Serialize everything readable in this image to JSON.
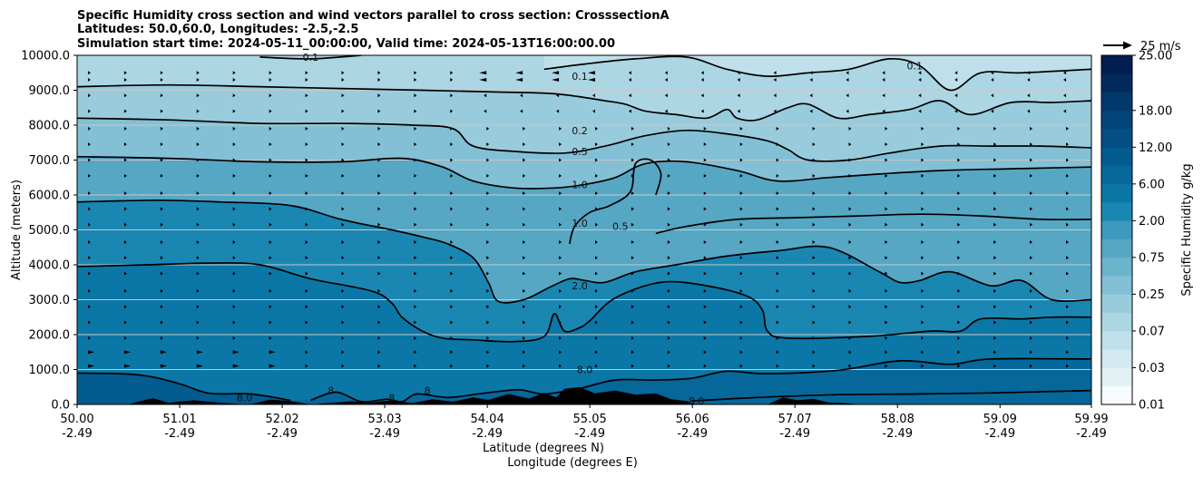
{
  "chart_data": {
    "type": "contour",
    "title_lines": [
      "Specific Humidity cross section and wind vectors parallel to cross section: CrosssectionA",
      "Latitudes: 50.0,60.0, Longitudes: -2.5,-2.5",
      "Simulation start time: 2024-05-11_00:00:00, Valid time: 2024-05-13T16:00:00.00"
    ],
    "xlabel_lines": [
      "Latitude (degrees N)",
      "Longitude (degrees E)"
    ],
    "ylabel": "Altitude (meters)",
    "x_ticks": [
      {
        "lat": "50.00",
        "lon": "-2.49"
      },
      {
        "lat": "51.01",
        "lon": "-2.49"
      },
      {
        "lat": "52.02",
        "lon": "-2.49"
      },
      {
        "lat": "53.03",
        "lon": "-2.49"
      },
      {
        "lat": "54.04",
        "lon": "-2.49"
      },
      {
        "lat": "55.05",
        "lon": "-2.49"
      },
      {
        "lat": "56.06",
        "lon": "-2.49"
      },
      {
        "lat": "57.07",
        "lon": "-2.49"
      },
      {
        "lat": "58.08",
        "lon": "-2.49"
      },
      {
        "lat": "59.09",
        "lon": "-2.49"
      },
      {
        "lat": "59.99",
        "lon": "-2.49"
      }
    ],
    "xlim": [
      50.0,
      59.99
    ],
    "y_ticks": [
      "0.0",
      "1000.0",
      "2000.0",
      "3000.0",
      "4000.0",
      "5000.0",
      "6000.0",
      "7000.0",
      "8000.0",
      "9000.0",
      "10000.0"
    ],
    "ylim": [
      0,
      10000
    ],
    "grid": "horizontal",
    "colorbar": {
      "label": "Specific Humidity g/kg",
      "levels": [
        0.01,
        0.02,
        0.03,
        0.05,
        0.07,
        0.1,
        0.25,
        0.5,
        0.75,
        1.0,
        2.0,
        3.0,
        6.0,
        9.0,
        12.0,
        15.0,
        18.0,
        21.0,
        25.0
      ],
      "tick_labels": [
        "0.01",
        "0.03",
        "0.07",
        "0.25",
        "0.75",
        "2.00",
        "6.00",
        "12.00",
        "18.00",
        "25.00"
      ],
      "colors": [
        "#f7fbfd",
        "#e3f1f5",
        "#d2e9f0",
        "#bfe0ea",
        "#acd6e3",
        "#98ccdc",
        "#83c0d5",
        "#6db4cd",
        "#56a7c4",
        "#3d99bd",
        "#1a87b2",
        "#0b77a6",
        "#06679a",
        "#035b8f",
        "#034f84",
        "#034478",
        "#03386c",
        "#022a5d",
        "#021d50"
      ]
    },
    "quiver_key": {
      "label": "25 m/s",
      "value": 25,
      "unit": "m/s"
    },
    "contour_labels": [
      {
        "text": "0.1",
        "lat": 52.3,
        "alt": 9950
      },
      {
        "text": "0.1",
        "lat": 54.95,
        "alt": 9400
      },
      {
        "text": "0.1",
        "lat": 58.25,
        "alt": 9700
      },
      {
        "text": "0.2",
        "lat": 54.95,
        "alt": 7850
      },
      {
        "text": "0.5",
        "lat": 54.95,
        "alt": 7250
      },
      {
        "text": "1.0",
        "lat": 54.95,
        "alt": 6300
      },
      {
        "text": "1.0",
        "lat": 54.95,
        "alt": 5200
      },
      {
        "text": "0.5",
        "lat": 55.35,
        "alt": 5100
      },
      {
        "text": "2.0",
        "lat": 54.95,
        "alt": 3400
      },
      {
        "text": "8.0",
        "lat": 51.65,
        "alt": 200
      },
      {
        "text": "8",
        "lat": 52.5,
        "alt": 400
      },
      {
        "text": "8",
        "lat": 53.1,
        "alt": 200
      },
      {
        "text": "8",
        "lat": 53.45,
        "alt": 400
      },
      {
        "text": "8.0",
        "lat": 55.0,
        "alt": 1000
      },
      {
        "text": "8.0",
        "lat": 56.1,
        "alt": 100
      }
    ],
    "contours": [
      {
        "level": 8.0,
        "points": [
          [
            50.0,
            900
          ],
          [
            50.6,
            850
          ],
          [
            51.0,
            600
          ],
          [
            51.3,
            320
          ],
          [
            51.7,
            300
          ],
          [
            52.1,
            120
          ]
        ]
      },
      {
        "level": 8.0,
        "points": [
          [
            52.3,
            120
          ],
          [
            52.55,
            350
          ],
          [
            52.8,
            80
          ],
          [
            53.05,
            150
          ],
          [
            53.2,
            80
          ],
          [
            53.35,
            300
          ],
          [
            53.65,
            200
          ],
          [
            54.0,
            320
          ],
          [
            54.35,
            420
          ],
          [
            54.6,
            300
          ],
          [
            54.95,
            460
          ],
          [
            55.3,
            700
          ],
          [
            55.7,
            700
          ],
          [
            56.05,
            750
          ],
          [
            56.4,
            950
          ],
          [
            56.8,
            880
          ],
          [
            57.5,
            980
          ],
          [
            58.1,
            1250
          ],
          [
            58.6,
            1150
          ],
          [
            59.0,
            1300
          ],
          [
            59.99,
            1300
          ]
        ]
      },
      {
        "level": 8.0,
        "points": [
          [
            56.05,
            100
          ],
          [
            56.7,
            200
          ],
          [
            57.5,
            280
          ],
          [
            58.3,
            300
          ],
          [
            59.0,
            330
          ],
          [
            59.99,
            400
          ]
        ]
      },
      {
        "level": 2.0,
        "points": [
          [
            50.0,
            3950
          ],
          [
            50.7,
            4000
          ],
          [
            51.3,
            4050
          ],
          [
            51.8,
            4000
          ],
          [
            52.3,
            3600
          ],
          [
            52.9,
            3250
          ],
          [
            53.1,
            2900
          ],
          [
            53.2,
            2500
          ],
          [
            53.4,
            2100
          ],
          [
            53.6,
            1900
          ],
          [
            53.9,
            1850
          ],
          [
            54.3,
            1800
          ],
          [
            54.6,
            1950
          ],
          [
            54.7,
            2600
          ],
          [
            54.8,
            2100
          ],
          [
            54.95,
            2200
          ],
          [
            55.05,
            2400
          ],
          [
            55.3,
            3050
          ],
          [
            55.75,
            3500
          ],
          [
            56.2,
            3400
          ],
          [
            56.6,
            3100
          ],
          [
            56.75,
            2700
          ],
          [
            56.8,
            2100
          ],
          [
            57.0,
            1900
          ],
          [
            57.8,
            1950
          ],
          [
            58.4,
            2100
          ],
          [
            58.7,
            2100
          ],
          [
            58.9,
            2450
          ],
          [
            59.3,
            2450
          ],
          [
            59.6,
            2500
          ],
          [
            59.99,
            2500
          ]
        ]
      },
      {
        "level": 1.0,
        "points": [
          [
            50.0,
            5800
          ],
          [
            50.8,
            5850
          ],
          [
            51.4,
            5800
          ],
          [
            52.1,
            5700
          ],
          [
            52.6,
            5300
          ],
          [
            53.1,
            5000
          ],
          [
            53.4,
            4800
          ],
          [
            53.65,
            4600
          ],
          [
            53.9,
            4200
          ],
          [
            54.05,
            3500
          ],
          [
            54.15,
            2950
          ],
          [
            54.4,
            3000
          ],
          [
            54.65,
            3350
          ],
          [
            54.85,
            3600
          ],
          [
            55.0,
            3550
          ],
          [
            55.2,
            3500
          ],
          [
            55.5,
            3800
          ],
          [
            55.9,
            4000
          ],
          [
            56.4,
            4250
          ],
          [
            56.9,
            4400
          ],
          [
            57.4,
            4500
          ],
          [
            57.9,
            3800
          ],
          [
            58.1,
            3500
          ],
          [
            58.3,
            3550
          ],
          [
            58.6,
            3800
          ],
          [
            59.0,
            3400
          ],
          [
            59.3,
            3550
          ],
          [
            59.6,
            3000
          ],
          [
            59.99,
            3000
          ]
        ]
      },
      {
        "level": 1.0,
        "points": [
          [
            54.85,
            4600
          ],
          [
            54.9,
            5100
          ],
          [
            55.05,
            5500
          ],
          [
            55.25,
            5700
          ],
          [
            55.45,
            6100
          ],
          [
            55.5,
            6900
          ],
          [
            55.65,
            7000
          ],
          [
            55.75,
            6600
          ],
          [
            55.7,
            6000
          ]
        ]
      },
      {
        "level": 0.5,
        "points": [
          [
            55.7,
            4900
          ],
          [
            56.0,
            5100
          ],
          [
            56.5,
            5300
          ],
          [
            57.1,
            5350
          ],
          [
            57.7,
            5400
          ],
          [
            58.3,
            5450
          ],
          [
            58.9,
            5400
          ],
          [
            59.5,
            5300
          ],
          [
            59.99,
            5300
          ]
        ]
      },
      {
        "level": 0.5,
        "points": [
          [
            50.0,
            7100
          ],
          [
            50.9,
            7050
          ],
          [
            51.8,
            6950
          ],
          [
            52.6,
            6950
          ],
          [
            53.2,
            7050
          ],
          [
            53.6,
            6800
          ],
          [
            53.9,
            6400
          ],
          [
            54.3,
            6200
          ],
          [
            54.7,
            6200
          ],
          [
            55.0,
            6300
          ],
          [
            55.3,
            6500
          ],
          [
            55.6,
            6900
          ],
          [
            56.0,
            6950
          ],
          [
            56.5,
            6700
          ],
          [
            56.9,
            6400
          ],
          [
            57.4,
            6500
          ],
          [
            57.9,
            6600
          ],
          [
            58.5,
            6700
          ],
          [
            59.2,
            6750
          ],
          [
            59.99,
            6800
          ]
        ]
      },
      {
        "level": 0.2,
        "points": [
          [
            50.0,
            8200
          ],
          [
            50.9,
            8150
          ],
          [
            51.8,
            8050
          ],
          [
            52.6,
            8050
          ],
          [
            53.3,
            8000
          ],
          [
            53.7,
            7900
          ],
          [
            53.9,
            7400
          ],
          [
            54.3,
            7250
          ],
          [
            54.8,
            7200
          ],
          [
            55.2,
            7400
          ],
          [
            55.6,
            7700
          ],
          [
            56.0,
            7850
          ],
          [
            56.4,
            7750
          ],
          [
            56.8,
            7550
          ],
          [
            57.0,
            7300
          ],
          [
            57.2,
            7000
          ],
          [
            57.6,
            7000
          ],
          [
            58.0,
            7200
          ],
          [
            58.5,
            7400
          ],
          [
            59.0,
            7400
          ],
          [
            59.5,
            7400
          ],
          [
            59.99,
            7350
          ]
        ]
      },
      {
        "level": 0.1,
        "points": [
          [
            50.0,
            9100
          ],
          [
            50.9,
            9150
          ],
          [
            51.8,
            9100
          ],
          [
            52.6,
            9050
          ],
          [
            53.4,
            9000
          ],
          [
            54.1,
            8950
          ],
          [
            54.7,
            8900
          ],
          [
            55.2,
            8700
          ],
          [
            55.4,
            8600
          ],
          [
            55.6,
            8400
          ],
          [
            55.9,
            8300
          ],
          [
            56.2,
            8200
          ],
          [
            56.4,
            8450
          ],
          [
            56.5,
            8200
          ],
          [
            56.7,
            8150
          ],
          [
            57.0,
            8500
          ],
          [
            57.2,
            8600
          ],
          [
            57.5,
            8200
          ],
          [
            57.8,
            8300
          ],
          [
            58.2,
            8450
          ],
          [
            58.5,
            8700
          ],
          [
            58.8,
            8300
          ],
          [
            59.2,
            8650
          ],
          [
            59.6,
            8650
          ],
          [
            59.99,
            8700
          ]
        ]
      },
      {
        "level": 0.1,
        "points": [
          [
            51.8,
            9950
          ],
          [
            52.3,
            9900
          ],
          [
            52.8,
            10000
          ]
        ]
      },
      {
        "level": 0.1,
        "points": [
          [
            54.6,
            9600
          ],
          [
            55.0,
            9750
          ],
          [
            55.5,
            9900
          ],
          [
            56.0,
            9950
          ],
          [
            56.4,
            9600
          ],
          [
            56.8,
            9400
          ],
          [
            57.2,
            9500
          ],
          [
            57.6,
            9600
          ],
          [
            58.0,
            9900
          ],
          [
            58.3,
            9700
          ],
          [
            58.6,
            9000
          ],
          [
            58.9,
            9500
          ],
          [
            59.3,
            9500
          ],
          [
            59.99,
            9600
          ]
        ]
      }
    ],
    "terrain": [
      [
        50.0,
        0
      ],
      [
        50.5,
        0
      ],
      [
        50.6,
        80
      ],
      [
        50.75,
        180
      ],
      [
        50.9,
        50
      ],
      [
        51.15,
        120
      ],
      [
        51.45,
        40
      ],
      [
        51.7,
        0
      ],
      [
        51.9,
        140
      ],
      [
        52.1,
        100
      ],
      [
        52.3,
        0
      ],
      [
        52.7,
        90
      ],
      [
        52.9,
        60
      ],
      [
        53.1,
        120
      ],
      [
        53.3,
        40
      ],
      [
        53.5,
        150
      ],
      [
        53.7,
        80
      ],
      [
        53.9,
        200
      ],
      [
        54.05,
        130
      ],
      [
        54.25,
        300
      ],
      [
        54.45,
        170
      ],
      [
        54.6,
        330
      ],
      [
        54.72,
        200
      ],
      [
        54.8,
        450
      ],
      [
        54.95,
        500
      ],
      [
        55.1,
        320
      ],
      [
        55.3,
        400
      ],
      [
        55.5,
        280
      ],
      [
        55.7,
        320
      ],
      [
        55.85,
        150
      ],
      [
        56.0,
        100
      ],
      [
        56.1,
        0
      ],
      [
        56.8,
        0
      ],
      [
        56.95,
        200
      ],
      [
        57.1,
        120
      ],
      [
        57.25,
        160
      ],
      [
        57.4,
        60
      ],
      [
        57.6,
        30
      ],
      [
        57.7,
        0
      ],
      [
        59.99,
        0
      ]
    ],
    "wind_rows_alt": [
      1100,
      1500,
      1900,
      2350,
      2800,
      3250,
      3750,
      4200,
      4650,
      5150,
      5600,
      6050,
      6550,
      7000,
      7450,
      7900,
      8400,
      8850,
      9300,
      9500
    ]
  }
}
